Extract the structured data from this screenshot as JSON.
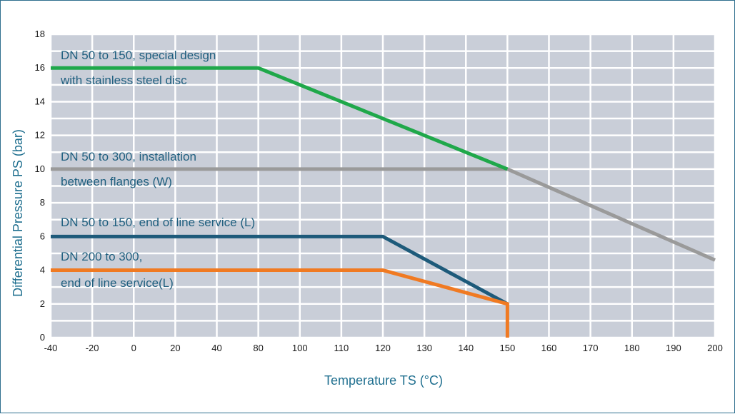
{
  "chart_data": {
    "type": "line",
    "title": "",
    "xlabel": "Temperature TS (°C)",
    "ylabel": "Differential Pressure PS (bar)",
    "xlim": [
      -40,
      200
    ],
    "ylim": [
      0,
      18
    ],
    "grid": true,
    "x_tick_labels": [
      "-40",
      "-20",
      "0",
      "20",
      "40",
      "80",
      "100",
      "110",
      "120",
      "130",
      "140",
      "150",
      "160",
      "170",
      "180",
      "190",
      "200"
    ],
    "y_tick_labels": [
      "0",
      "2",
      "4",
      "6",
      "8",
      "10",
      "12",
      "14",
      "16",
      "18"
    ],
    "series": [
      {
        "color": "#1fa84a",
        "points": [
          [
            "-40",
            16
          ],
          [
            "80",
            16
          ],
          [
            "150",
            10
          ]
        ],
        "label_lines": [
          "DN 50 to 150, special design",
          "with stainless steel disc"
        ]
      },
      {
        "color": "#9a9a9a",
        "points": [
          [
            "-40",
            10
          ],
          [
            "150",
            10
          ],
          [
            "200",
            4.6
          ]
        ],
        "label_lines": [
          "DN 50 to 300, installation",
          "between flanges (W)"
        ]
      },
      {
        "color": "#1d5a7a",
        "points": [
          [
            "-40",
            6
          ],
          [
            "120",
            6
          ],
          [
            "150",
            2
          ]
        ],
        "label_lines": [
          "DN 50 to 150, end of line service (L)"
        ]
      },
      {
        "color": "#f07a22",
        "points": [
          [
            "-40",
            4
          ],
          [
            "120",
            4
          ],
          [
            "150",
            2
          ],
          [
            "150",
            0
          ]
        ],
        "label_lines": [
          "DN 200 to 300,",
          "end of line service(L)"
        ]
      }
    ]
  }
}
